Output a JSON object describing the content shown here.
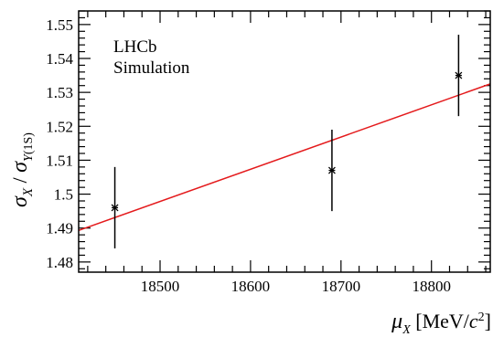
{
  "chart_data": {
    "type": "scatter",
    "annotation": [
      "LHCb",
      "Simulation"
    ],
    "ylabel": "σ_X / σ_Υ(1S)",
    "xlabel": "μ_X [MeV/c²]",
    "xlim": [
      18410,
      18865
    ],
    "ylim": [
      1.477,
      1.554
    ],
    "x_ticks": [
      18500,
      18600,
      18700,
      18800
    ],
    "y_ticks": [
      1.48,
      1.49,
      1.5,
      1.51,
      1.52,
      1.53,
      1.54,
      1.55
    ],
    "y_tick_labels": [
      "1.48",
      "1.49",
      "1.5",
      "1.51",
      "1.52",
      "1.53",
      "1.54",
      "1.55"
    ],
    "x_minor_step": 20,
    "y_minor_step": 0.002,
    "points": [
      {
        "x": 18450,
        "y": 1.496,
        "yerr": 0.012
      },
      {
        "x": 18690,
        "y": 1.507,
        "yerr": 0.012
      },
      {
        "x": 18830,
        "y": 1.535,
        "yerr": 0.012
      }
    ],
    "fit_line": {
      "x": [
        18410,
        18865
      ],
      "y": [
        1.4893,
        1.5325
      ],
      "color": "#e41a1c"
    },
    "grid": false
  }
}
